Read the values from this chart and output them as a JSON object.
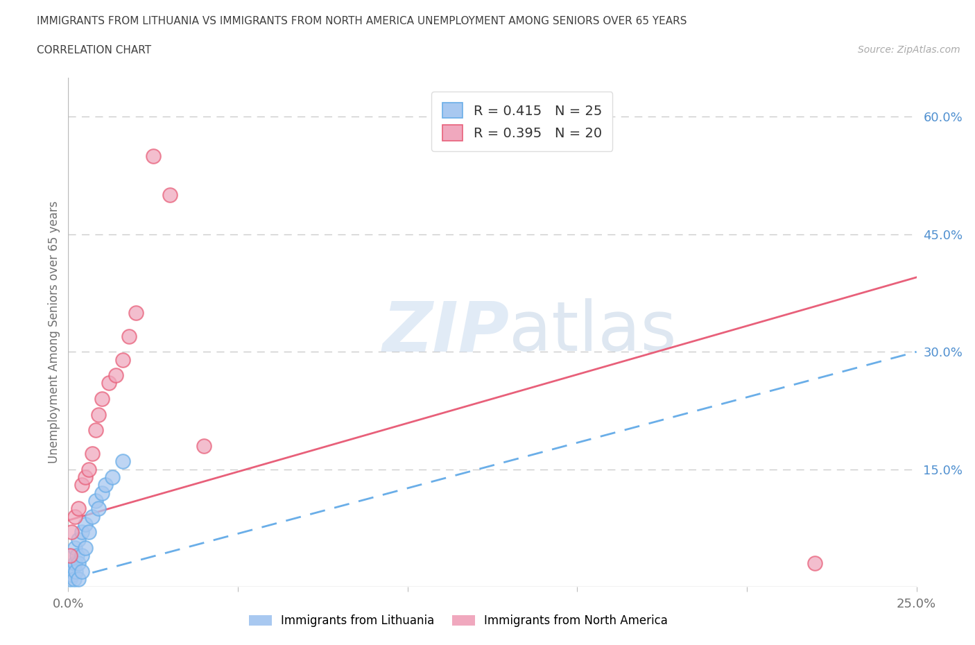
{
  "title_line1": "IMMIGRANTS FROM LITHUANIA VS IMMIGRANTS FROM NORTH AMERICA UNEMPLOYMENT AMONG SENIORS OVER 65 YEARS",
  "title_line2": "CORRELATION CHART",
  "source": "Source: ZipAtlas.com",
  "ylabel": "Unemployment Among Seniors over 65 years",
  "xlim": [
    0.0,
    0.25
  ],
  "ylim": [
    0.0,
    0.65
  ],
  "yticks_right": [
    0.15,
    0.3,
    0.45,
    0.6
  ],
  "ytick_right_labels": [
    "15.0%",
    "30.0%",
    "45.0%",
    "60.0%"
  ],
  "legend_r1": "R = 0.415",
  "legend_n1": "N = 25",
  "legend_r2": "R = 0.395",
  "legend_n2": "N = 20",
  "color_lithuania": "#a8c8f0",
  "color_north_america": "#f0a8be",
  "color_line_lithuania": "#6aaee8",
  "color_line_north_america": "#e8607a",
  "background_color": "#ffffff",
  "grid_color": "#cccccc",
  "title_color": "#404040",
  "axis_label_color": "#707070",
  "lith_x": [
    0.0005,
    0.001,
    0.0012,
    0.0015,
    0.0018,
    0.002,
    0.002,
    0.0022,
    0.0025,
    0.003,
    0.003,
    0.003,
    0.004,
    0.004,
    0.004,
    0.005,
    0.005,
    0.006,
    0.007,
    0.008,
    0.009,
    0.01,
    0.011,
    0.013,
    0.016
  ],
  "lith_y": [
    0.01,
    0.02,
    0.015,
    0.025,
    0.01,
    0.03,
    0.05,
    0.02,
    0.04,
    0.03,
    0.06,
    0.01,
    0.04,
    0.07,
    0.02,
    0.05,
    0.08,
    0.07,
    0.09,
    0.11,
    0.1,
    0.12,
    0.13,
    0.14,
    0.16
  ],
  "na_x": [
    0.0005,
    0.001,
    0.002,
    0.003,
    0.004,
    0.005,
    0.006,
    0.007,
    0.008,
    0.009,
    0.01,
    0.012,
    0.014,
    0.016,
    0.018,
    0.02,
    0.025,
    0.03,
    0.04,
    0.22
  ],
  "na_y": [
    0.04,
    0.07,
    0.09,
    0.1,
    0.13,
    0.14,
    0.15,
    0.17,
    0.2,
    0.22,
    0.24,
    0.26,
    0.27,
    0.29,
    0.32,
    0.35,
    0.55,
    0.5,
    0.18,
    0.03
  ],
  "line_lith_x0": 0.0,
  "line_lith_x1": 0.25,
  "line_lith_y0": 0.01,
  "line_lith_y1": 0.3,
  "line_na_x0": 0.0,
  "line_na_x1": 0.25,
  "line_na_y0": 0.085,
  "line_na_y1": 0.395
}
